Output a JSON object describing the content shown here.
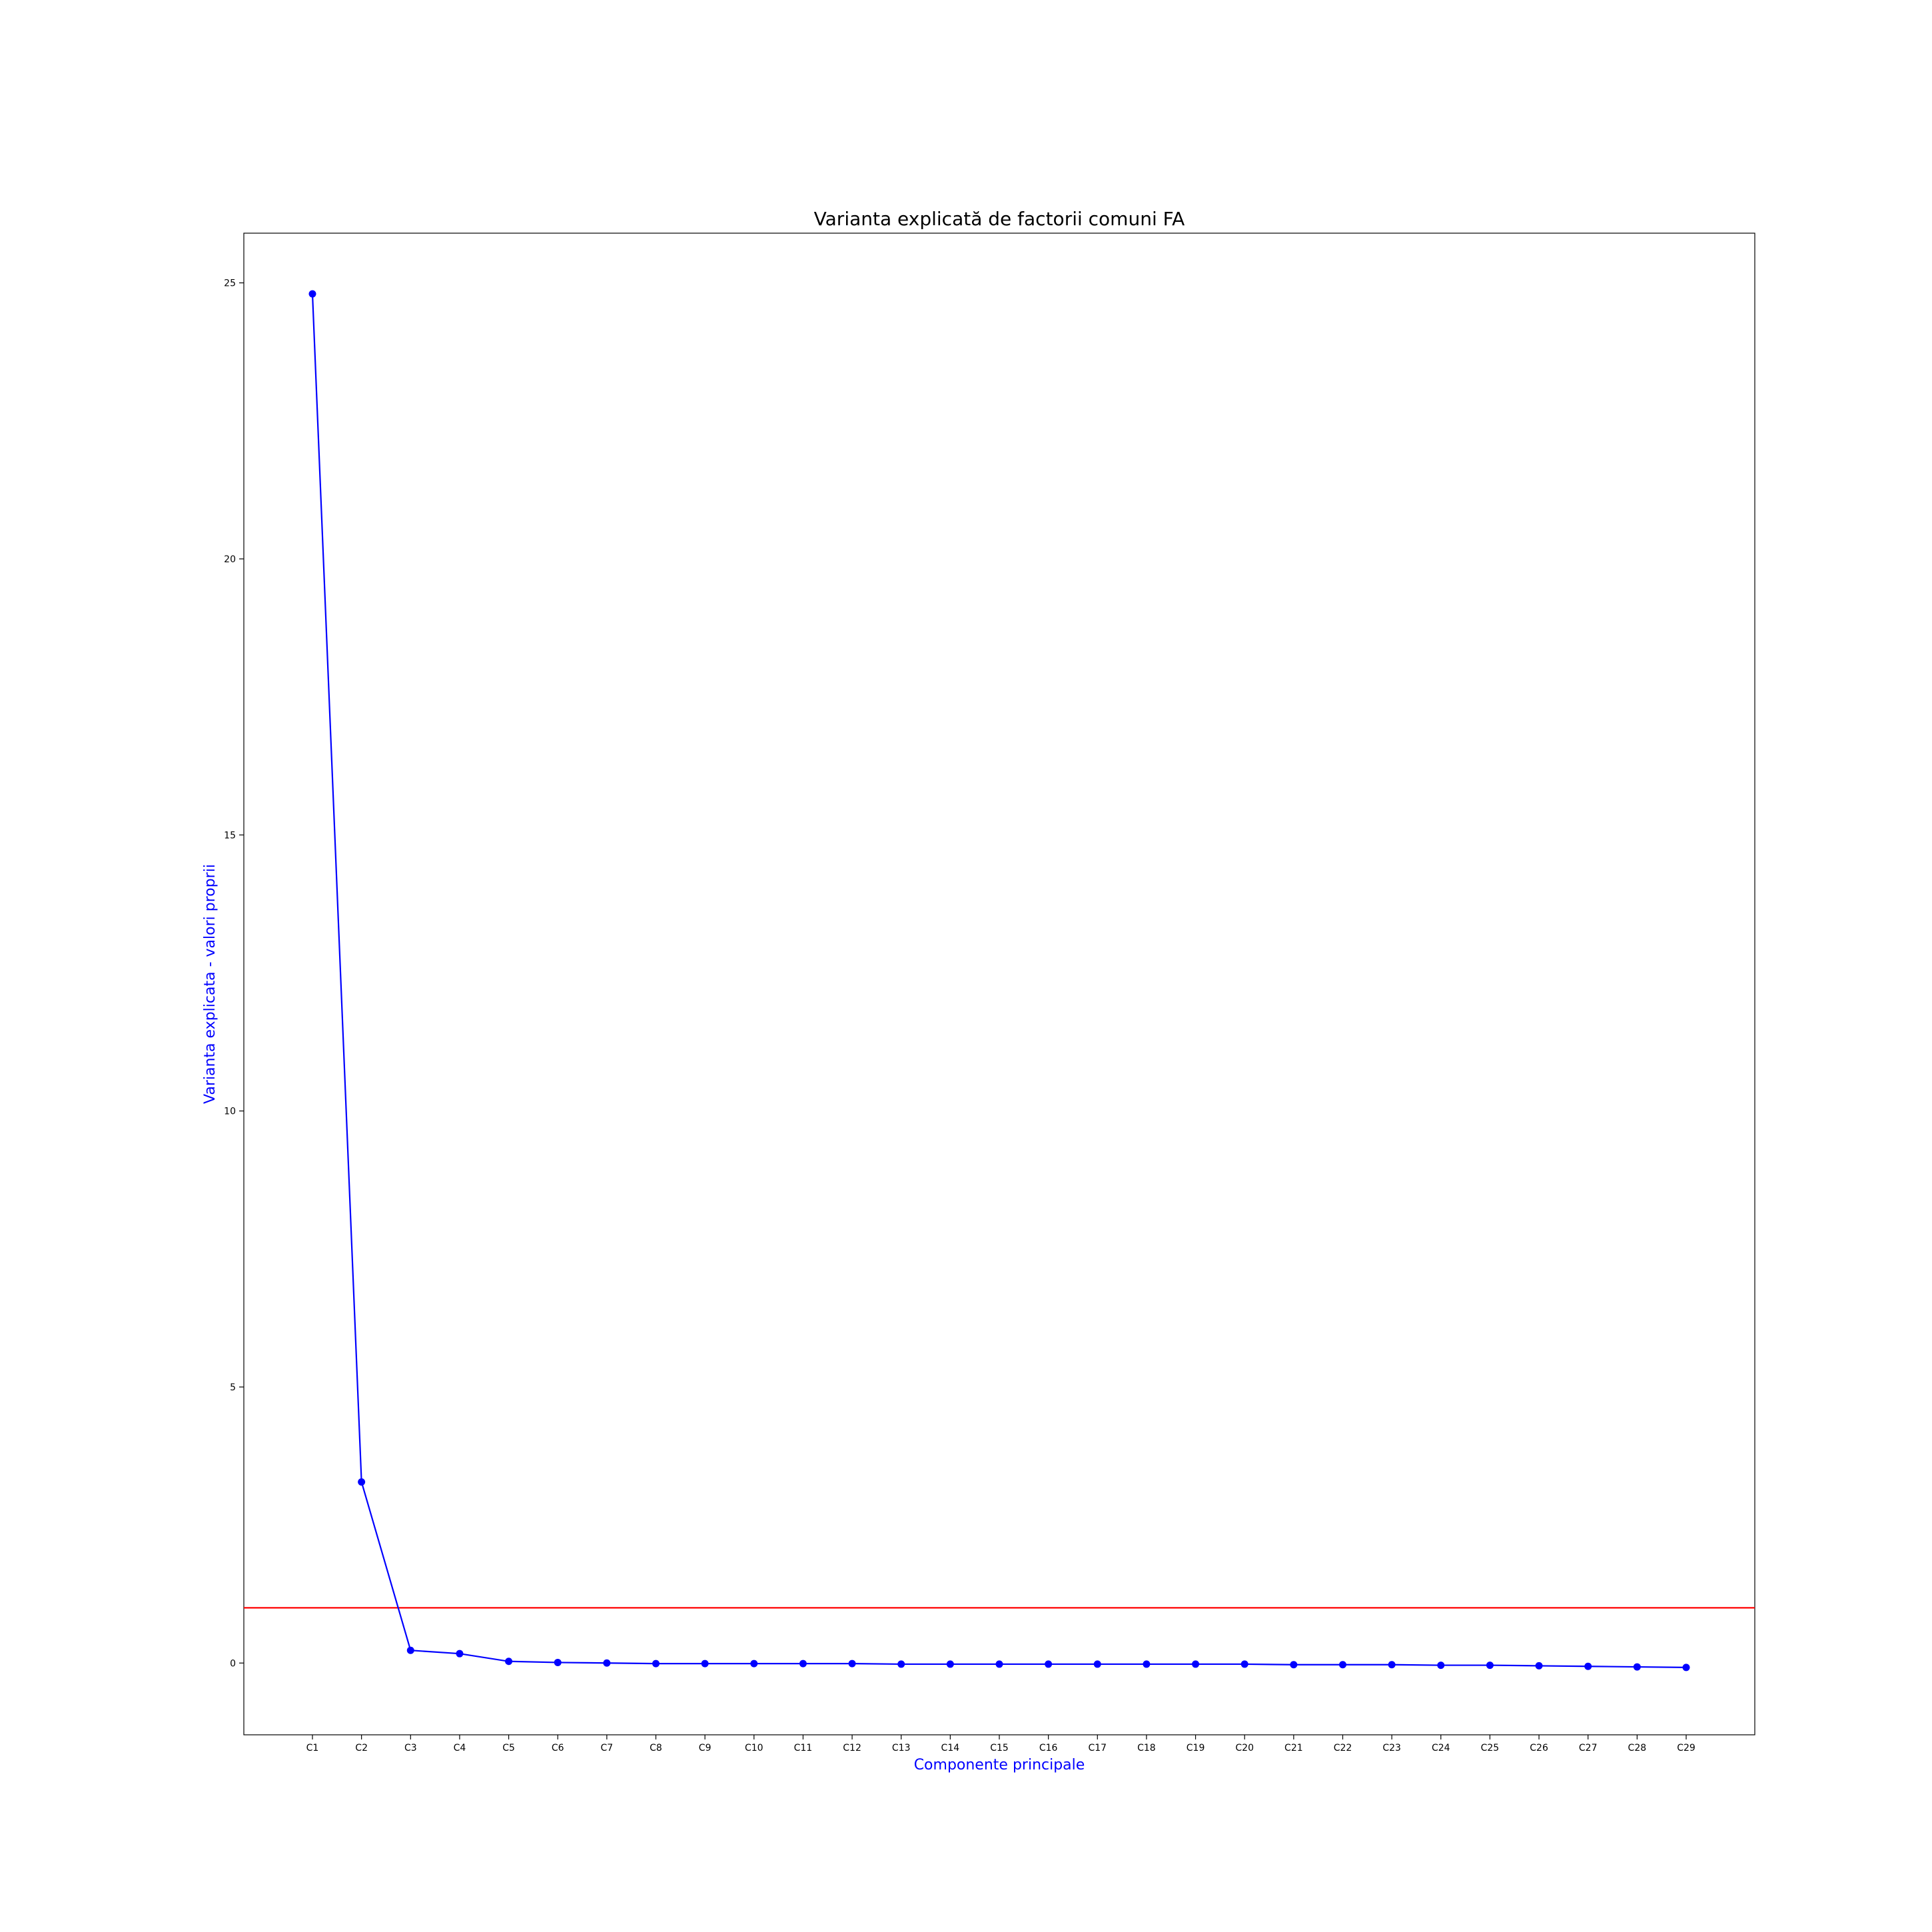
{
  "chart_data": {
    "type": "line",
    "title": "Varianta explicată de factorii comuni FA",
    "xlabel": "Componente principale",
    "ylabel": "Varianta explicata - valori proprii",
    "categories": [
      "C1",
      "C2",
      "C3",
      "C4",
      "C5",
      "C6",
      "C7",
      "C8",
      "C9",
      "C10",
      "C11",
      "C12",
      "C13",
      "C14",
      "C15",
      "C16",
      "C17",
      "C18",
      "C19",
      "C20",
      "C21",
      "C22",
      "C23",
      "C24",
      "C25",
      "C26",
      "C27",
      "C28",
      "C29"
    ],
    "series": [
      {
        "values": [
          24.8,
          3.28,
          0.23,
          0.17,
          0.03,
          0.01,
          0.0,
          -0.01,
          -0.01,
          -0.01,
          -0.01,
          -0.01,
          -0.02,
          -0.02,
          -0.02,
          -0.02,
          -0.02,
          -0.02,
          -0.02,
          -0.02,
          -0.03,
          -0.03,
          -0.03,
          -0.04,
          -0.04,
          -0.05,
          -0.06,
          -0.07,
          -0.08
        ]
      }
    ],
    "reference_line": {
      "y": 1.0,
      "color": "#ff0000"
    },
    "ylim": [
      -1.3,
      25.9
    ],
    "yticks": [
      0,
      5,
      10,
      15,
      20,
      25
    ],
    "grid": false,
    "line_color": "#0000ff",
    "label_color": "#0000ff"
  }
}
